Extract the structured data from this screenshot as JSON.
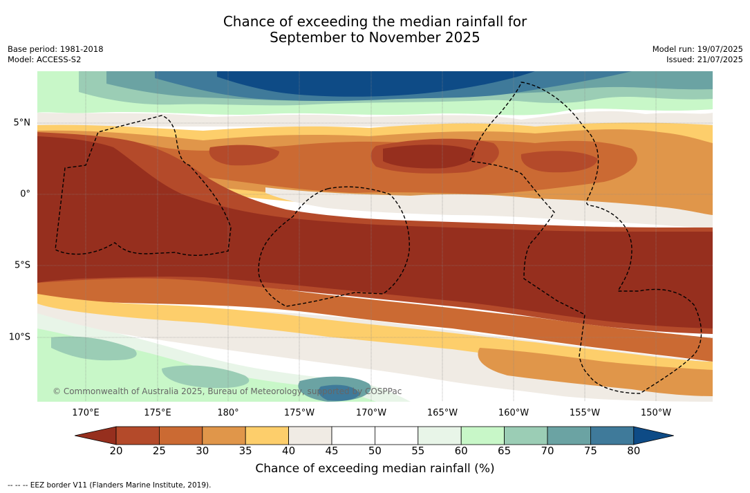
{
  "title_line1": "Chance of exceeding the median rainfall for",
  "title_line2": "September to November 2025",
  "base_period": "Base period: 1981-2018",
  "model": "Model: ACCESS-S2",
  "model_run": "Model run: 19/07/2025",
  "issued": "Issued: 21/07/2025",
  "copyright": "© Commonwealth of Australia 2025, Bureau of Meteorology, supported by COSPPac",
  "latitude_labels": [
    "5°N",
    "0°",
    "5°S",
    "10°S"
  ],
  "longitude_labels": [
    "170°E",
    "175°E",
    "180°",
    "175°W",
    "170°W",
    "165°W",
    "160°W",
    "155°W",
    "150°W"
  ],
  "colorbar": {
    "title": "Chance of exceeding median rainfall (%)",
    "ticks": [
      "20",
      "25",
      "30",
      "35",
      "40",
      "45",
      "50",
      "55",
      "60",
      "65",
      "70",
      "75",
      "80"
    ],
    "colors": [
      "#962f1e",
      "#b44a2a",
      "#cb6a33",
      "#e0964a",
      "#fdce6b",
      "#f0ebe4",
      "#ffffff",
      "#ffffff",
      "#e8f5e8",
      "#c8f7c8",
      "#9bcdb5",
      "#6ba3a3",
      "#3f7a9a",
      "#0e4b86"
    ]
  },
  "eez_legend": "-- -- -- EEZ border V11 (Flanders Marine Institute, 2019)."
}
